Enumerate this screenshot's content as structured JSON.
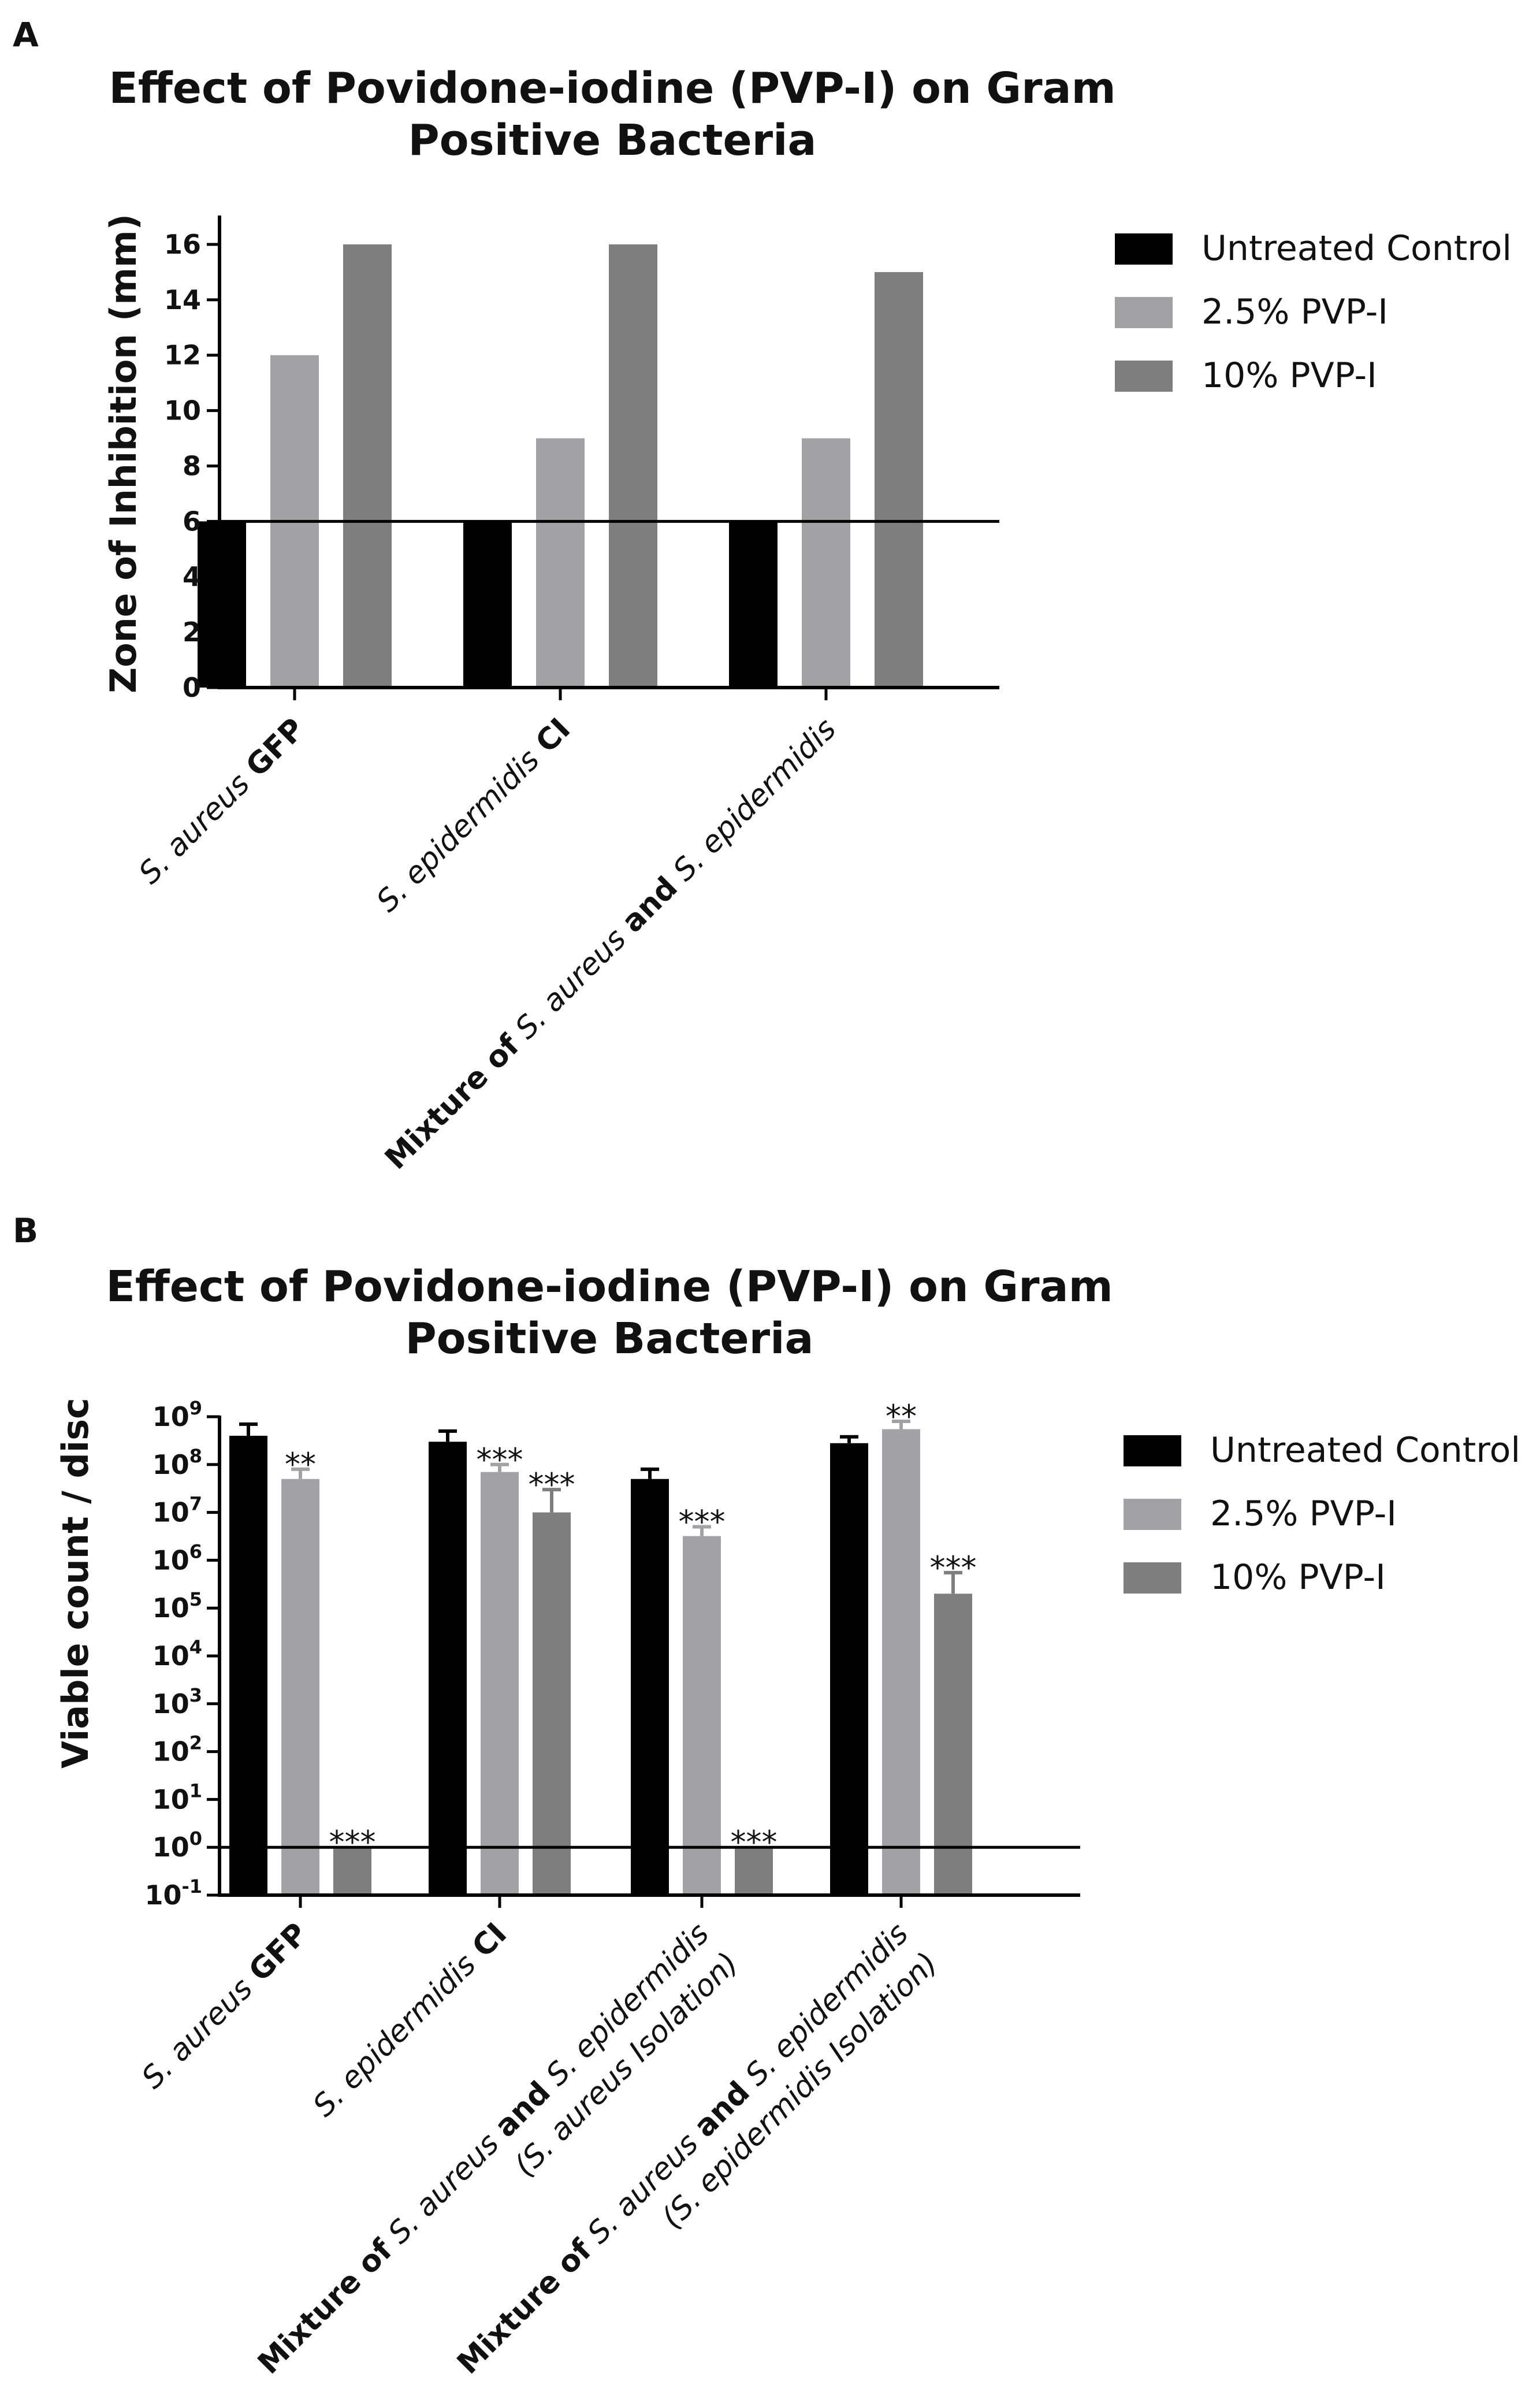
{
  "chart_data": [
    {
      "panel": "A",
      "type": "bar",
      "title": [
        "Effect of Povidone-iodine (PVP-I) on Gram",
        "Positive Bacteria"
      ],
      "ylabel": "Zone of Inhibition (mm)",
      "ylim": [
        0,
        17
      ],
      "yticks": [
        "0",
        "2",
        "4",
        "6",
        "8",
        "10",
        "12",
        "14",
        "16"
      ],
      "reference_line": 6,
      "grid": false,
      "legend_position": "right",
      "categories": [
        [
          {
            "t": "S. aureus",
            "s": "i"
          },
          {
            "t": " GFP",
            "s": "b"
          }
        ],
        [
          {
            "t": "S. epidermidis",
            "s": "i"
          },
          {
            "t": " CI",
            "s": "b"
          }
        ],
        [
          {
            "t": "Mixture of",
            "s": "b"
          },
          {
            "t": " S. aureus ",
            "s": "i"
          },
          {
            "t": "and",
            "s": "b"
          },
          {
            "t": " S. epidermidis",
            "s": "i"
          }
        ]
      ],
      "series": [
        {
          "name": "Untreated Control",
          "color": "#000000",
          "values": [
            6,
            6,
            6
          ]
        },
        {
          "name": "2.5% PVP-I",
          "color": "#a2a2a6",
          "values": [
            12,
            9,
            9
          ]
        },
        {
          "name": "10% PVP-I",
          "color": "#7e7e7e",
          "values": [
            16,
            16,
            15
          ]
        }
      ]
    },
    {
      "panel": "B",
      "type": "bar",
      "title": [
        "Effect of Povidone-iodine (PVP-I) on Gram",
        "Positive Bacteria"
      ],
      "ylabel": "Viable count / disc",
      "yscale": "log",
      "ylim_exponent": [
        -1,
        9
      ],
      "ytick_base": "10",
      "ytick_exponents": [
        "-1",
        "0",
        "1",
        "2",
        "3",
        "4",
        "5",
        "6",
        "7",
        "8",
        "9"
      ],
      "reference_line": 1,
      "grid": false,
      "legend_position": "right",
      "categories": [
        [
          [
            {
              "t": "S. aureus",
              "s": "i"
            },
            {
              "t": " GFP",
              "s": "b"
            }
          ]
        ],
        [
          [
            {
              "t": "S. epidermidis",
              "s": "i"
            },
            {
              "t": " CI",
              "s": "b"
            }
          ]
        ],
        [
          [
            {
              "t": "Mixture of",
              "s": "b"
            },
            {
              "t": " S. aureus ",
              "s": "i"
            },
            {
              "t": "and",
              "s": "b"
            },
            {
              "t": " S. epidermidis",
              "s": "i"
            }
          ],
          [
            {
              "t": "(S. aureus",
              "s": "i"
            },
            {
              "t": " Isolation)",
              "s": "i"
            }
          ]
        ],
        [
          [
            {
              "t": "Mixture of",
              "s": "b"
            },
            {
              "t": " S. aureus ",
              "s": "i"
            },
            {
              "t": "and",
              "s": "b"
            },
            {
              "t": " S. epidermidis",
              "s": "i"
            }
          ],
          [
            {
              "t": "(S. epidermidis",
              "s": "i"
            },
            {
              "t": " Isolation)",
              "s": "i"
            }
          ]
        ]
      ],
      "series": [
        {
          "name": "Untreated Control",
          "color": "#000000",
          "values": [
            400000000,
            300000000,
            50000000,
            280000000
          ],
          "error_upper": [
            700000000,
            500000000,
            80000000,
            380000000
          ],
          "significance": [
            "",
            "",
            "",
            ""
          ]
        },
        {
          "name": "2.5% PVP-I",
          "color": "#a2a2a6",
          "values": [
            50000000,
            70000000,
            3200000,
            550000000
          ],
          "error_upper": [
            80000000,
            100000000,
            5000000,
            800000000
          ],
          "significance": [
            "**",
            "***",
            "***",
            "**"
          ]
        },
        {
          "name": "10% PVP-I",
          "color": "#7e7e7e",
          "values": [
            1,
            10000000,
            1,
            200000
          ],
          "error_upper": [
            1,
            30000000,
            1,
            550000
          ],
          "significance": [
            "***",
            "***",
            "***",
            "***"
          ]
        }
      ]
    }
  ]
}
